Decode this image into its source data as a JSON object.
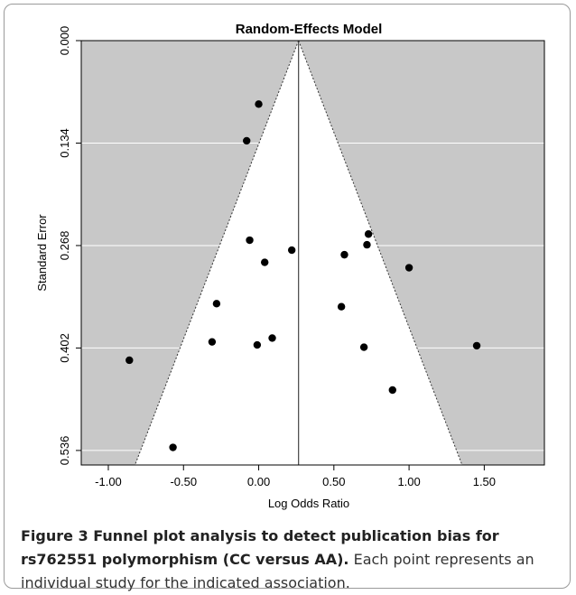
{
  "chart_data": {
    "type": "scatter",
    "title": "Random-Effects Model",
    "xlabel": "Log Odds Ratio",
    "ylabel": "Standard Error",
    "xlim": [
      -1.18,
      1.9
    ],
    "ylim": [
      0.0,
      0.555
    ],
    "y_reversed": true,
    "x_ticks": [
      "-1.00",
      "-0.50",
      "0.00",
      "0.50",
      "1.00",
      "1.50"
    ],
    "x_tick_values": [
      -1.0,
      -0.5,
      0.0,
      0.5,
      1.0,
      1.5
    ],
    "y_ticks": [
      "0.000",
      "0.134",
      "0.268",
      "0.402",
      "0.536"
    ],
    "y_tick_values": [
      0.0,
      0.134,
      0.268,
      0.402,
      0.536
    ],
    "grid": "horizontal",
    "summary_log_or": 0.265,
    "funnel_se_max": 0.555,
    "colors": {
      "outside_funnel": "#c8c8c8",
      "inside_funnel": "#ffffff",
      "point": "#000000"
    },
    "points": [
      {
        "x": 0.0,
        "y": 0.083
      },
      {
        "x": -0.08,
        "y": 0.131
      },
      {
        "x": -0.06,
        "y": 0.261
      },
      {
        "x": 0.22,
        "y": 0.274
      },
      {
        "x": 0.04,
        "y": 0.29
      },
      {
        "x": 0.57,
        "y": 0.28
      },
      {
        "x": 0.72,
        "y": 0.267
      },
      {
        "x": 0.73,
        "y": 0.253
      },
      {
        "x": 1.0,
        "y": 0.297
      },
      {
        "x": -0.28,
        "y": 0.344
      },
      {
        "x": 0.55,
        "y": 0.348
      },
      {
        "x": -0.31,
        "y": 0.394
      },
      {
        "x": 0.09,
        "y": 0.389
      },
      {
        "x": -0.01,
        "y": 0.398
      },
      {
        "x": 0.7,
        "y": 0.401
      },
      {
        "x": 1.45,
        "y": 0.399
      },
      {
        "x": -0.86,
        "y": 0.418
      },
      {
        "x": 0.89,
        "y": 0.457
      },
      {
        "x": -0.57,
        "y": 0.532
      }
    ]
  },
  "caption": {
    "bold": "Figure 3 Funnel plot analysis to detect publication bias for rs762551 polymorphism (CC versus AA).",
    "text": " Each point represents an individual study for the indicated association."
  }
}
